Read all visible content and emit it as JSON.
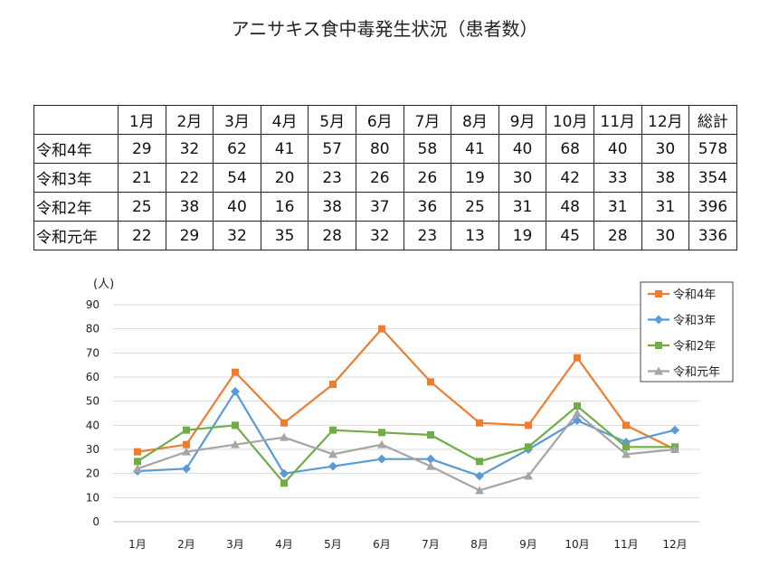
{
  "title": "アニサキス食中毒発生状況（患者数）",
  "table": {
    "headers": [
      "",
      "1月",
      "2月",
      "3月",
      "4月",
      "5月",
      "6月",
      "7月",
      "8月",
      "9月",
      "10月",
      "11月",
      "12月",
      "総計"
    ],
    "rows": [
      {
        "label": "令和4年",
        "cells": [
          "29",
          "32",
          "62",
          "41",
          "57",
          "80",
          "58",
          "41",
          "40",
          "68",
          "40",
          "30",
          "578"
        ]
      },
      {
        "label": "令和3年",
        "cells": [
          "21",
          "22",
          "54",
          "20",
          "23",
          "26",
          "26",
          "19",
          "30",
          "42",
          "33",
          "38",
          "354"
        ]
      },
      {
        "label": "令和2年",
        "cells": [
          "25",
          "38",
          "40",
          "16",
          "38",
          "37",
          "36",
          "25",
          "31",
          "48",
          "31",
          "31",
          "396"
        ]
      },
      {
        "label": "令和元年",
        "cells": [
          "22",
          "29",
          "32",
          "35",
          "28",
          "32",
          "23",
          "13",
          "19",
          "45",
          "28",
          "30",
          "336"
        ]
      }
    ]
  },
  "chart_data": {
    "type": "line",
    "title": "",
    "ylabel": "(人)",
    "xlabel": "",
    "categories": [
      "1月",
      "2月",
      "3月",
      "4月",
      "5月",
      "6月",
      "7月",
      "8月",
      "9月",
      "10月",
      "11月",
      "12月"
    ],
    "ylim": [
      0,
      90
    ],
    "yticks": [
      "0",
      "10",
      "20",
      "30",
      "40",
      "50",
      "60",
      "70",
      "80",
      "90"
    ],
    "grid": true,
    "legend_position": "top-right",
    "series": [
      {
        "name": "令和4年",
        "color": "#ED7D31",
        "marker": "square",
        "values": [
          29,
          32,
          62,
          41,
          57,
          80,
          58,
          41,
          40,
          68,
          40,
          30
        ]
      },
      {
        "name": "令和3年",
        "color": "#5B9BD5",
        "marker": "diamond",
        "values": [
          21,
          22,
          54,
          20,
          23,
          26,
          26,
          19,
          30,
          42,
          33,
          38
        ]
      },
      {
        "name": "令和2年",
        "color": "#70AD47",
        "marker": "square",
        "values": [
          25,
          38,
          40,
          16,
          38,
          37,
          36,
          25,
          31,
          48,
          31,
          31
        ]
      },
      {
        "name": "令和元年",
        "color": "#A5A5A5",
        "marker": "triangle",
        "values": [
          22,
          29,
          32,
          35,
          28,
          32,
          23,
          13,
          19,
          45,
          28,
          30
        ]
      }
    ]
  }
}
